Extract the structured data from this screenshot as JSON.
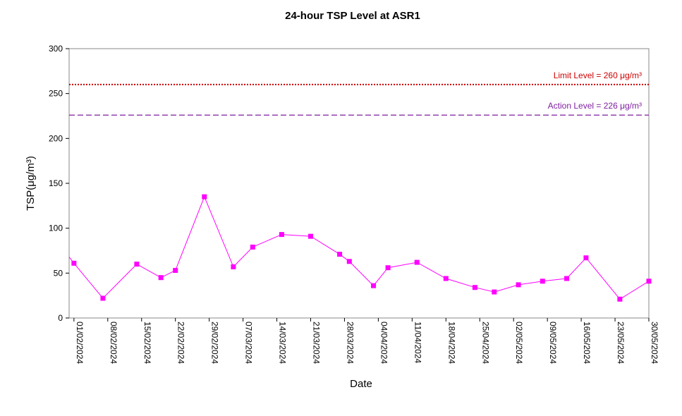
{
  "chart_data": {
    "type": "line",
    "title": "24-hour TSP Level at ASR1",
    "xlabel": "Date",
    "ylabel": "TSP(μg/m³)",
    "ylim": [
      0,
      300
    ],
    "yticks": [
      0,
      50,
      100,
      150,
      200,
      250,
      300
    ],
    "x_range": [
      "31/01/2024",
      "30/05/2024"
    ],
    "xticks": [
      "01/02/2024",
      "08/02/2024",
      "15/02/2024",
      "22/02/2024",
      "29/02/2024",
      "07/03/2024",
      "14/03/2024",
      "21/03/2024",
      "28/03/2024",
      "04/04/2024",
      "11/04/2024",
      "18/04/2024",
      "25/04/2024",
      "02/05/2024",
      "09/05/2024",
      "16/05/2024",
      "23/05/2024",
      "30/05/2024"
    ],
    "grid": false,
    "series": [
      {
        "color": "#ff00ff",
        "marker": "square",
        "points": [
          {
            "x": "31/01/2024",
            "y": 68,
            "marker": false
          },
          {
            "x": "01/02/2024",
            "y": 61
          },
          {
            "x": "07/02/2024",
            "y": 22
          },
          {
            "x": "14/02/2024",
            "y": 60
          },
          {
            "x": "19/02/2024",
            "y": 45
          },
          {
            "x": "22/02/2024",
            "y": 53
          },
          {
            "x": "28/02/2024",
            "y": 135
          },
          {
            "x": "05/03/2024",
            "y": 57
          },
          {
            "x": "09/03/2024",
            "y": 79
          },
          {
            "x": "15/03/2024",
            "y": 93
          },
          {
            "x": "21/03/2024",
            "y": 91
          },
          {
            "x": "27/03/2024",
            "y": 71
          },
          {
            "x": "29/03/2024",
            "y": 63
          },
          {
            "x": "03/04/2024",
            "y": 36
          },
          {
            "x": "06/04/2024",
            "y": 56
          },
          {
            "x": "12/04/2024",
            "y": 62
          },
          {
            "x": "18/04/2024",
            "y": 44
          },
          {
            "x": "24/04/2024",
            "y": 34
          },
          {
            "x": "28/04/2024",
            "y": 29
          },
          {
            "x": "03/05/2024",
            "y": 37
          },
          {
            "x": "08/05/2024",
            "y": 41
          },
          {
            "x": "13/05/2024",
            "y": 44
          },
          {
            "x": "17/05/2024",
            "y": 67
          },
          {
            "x": "24/05/2024",
            "y": 21
          },
          {
            "x": "30/05/2024",
            "y": 41
          }
        ]
      }
    ],
    "reference_lines": [
      {
        "label": "Limit Level = 260 μg/m³",
        "y": 260,
        "color": "#cc0000",
        "style": "dotted"
      },
      {
        "label": "Action Level = 226 μg/m³",
        "y": 226,
        "color": "#7f1f9f",
        "style": "dashed"
      }
    ]
  }
}
